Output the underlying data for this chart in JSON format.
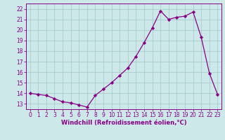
{
  "x": [
    0,
    1,
    2,
    3,
    4,
    5,
    6,
    7,
    8,
    9,
    10,
    11,
    12,
    13,
    14,
    15,
    16,
    17,
    18,
    19,
    20,
    21,
    22,
    23
  ],
  "y": [
    14.0,
    13.9,
    13.8,
    13.5,
    13.2,
    13.1,
    12.9,
    12.7,
    13.8,
    14.4,
    15.0,
    15.7,
    16.4,
    17.5,
    18.8,
    20.2,
    21.8,
    21.0,
    21.2,
    21.3,
    21.7,
    19.3,
    15.9,
    13.9
  ],
  "xlabel": "Windchill (Refroidissement éolien,°C)",
  "bg_color": "#cce8e8",
  "grid_color": "#aacccc",
  "line_color": "#880088",
  "marker_color": "#880088",
  "tick_color": "#880088",
  "label_color": "#880088",
  "ylim": [
    12.5,
    22.5
  ],
  "xlim": [
    -0.5,
    23.5
  ],
  "yticks": [
    13,
    14,
    15,
    16,
    17,
    18,
    19,
    20,
    21,
    22
  ],
  "xticks": [
    0,
    1,
    2,
    3,
    4,
    5,
    6,
    7,
    8,
    9,
    10,
    11,
    12,
    13,
    14,
    15,
    16,
    17,
    18,
    19,
    20,
    21,
    22,
    23
  ],
  "tick_fontsize": 5.5,
  "xlabel_fontsize": 6.0
}
